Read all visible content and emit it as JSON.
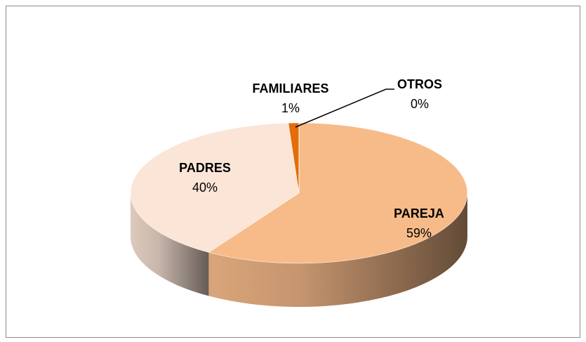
{
  "chart_data": {
    "type": "pie",
    "categories": [
      "PAREJA",
      "PADRES",
      "FAMILIARES",
      "OTROS"
    ],
    "values": [
      59,
      40,
      1,
      0
    ],
    "value_labels": [
      "59%",
      "40%",
      "1%",
      "0%"
    ],
    "colors": [
      "#f7bb8a",
      "#fbe5d6",
      "#e46c0a",
      "#c0504d"
    ]
  }
}
